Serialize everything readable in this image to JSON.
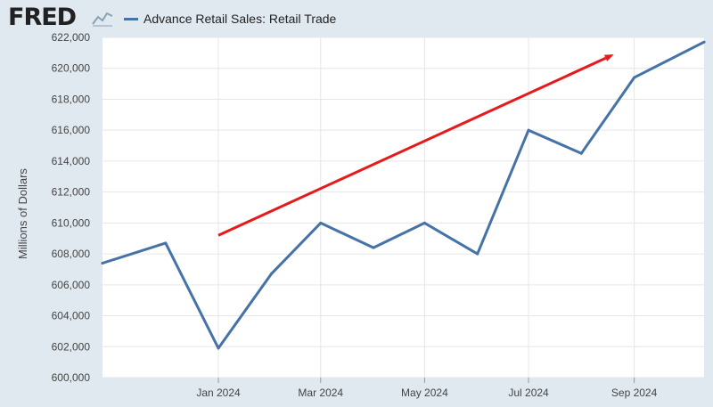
{
  "header": {
    "logo_text": "FRED",
    "logo_icon": "line-chart-icon"
  },
  "chart_data": {
    "type": "line",
    "title": "",
    "xlabel": "",
    "ylabel": "Millions of Dollars",
    "ylim": [
      600000,
      622000
    ],
    "xlim": [
      "2023-10-25",
      "2024-10-12"
    ],
    "yticks": [
      600000,
      602000,
      604000,
      606000,
      608000,
      610000,
      612000,
      614000,
      616000,
      618000,
      620000,
      622000
    ],
    "ytick_labels": [
      "600,000",
      "602,000",
      "604,000",
      "606,000",
      "608,000",
      "610,000",
      "612,000",
      "614,000",
      "616,000",
      "618,000",
      "620,000",
      "622,000"
    ],
    "xticks": [
      "2024-01-01",
      "2024-03-01",
      "2024-05-01",
      "2024-07-01",
      "2024-09-01"
    ],
    "xtick_labels": [
      "Jan 2024",
      "Mar 2024",
      "May 2024",
      "Jul 2024",
      "Sep 2024"
    ],
    "grid": true,
    "legend": "top-left",
    "series": [
      {
        "name": "Advance Retail Sales: Retail Trade",
        "color": "#4572a7",
        "x": [
          "2023-10-25",
          "2023-12-01",
          "2024-01-01",
          "2024-02-01",
          "2024-03-01",
          "2024-04-01",
          "2024-05-01",
          "2024-06-01",
          "2024-07-01",
          "2024-08-01",
          "2024-09-01",
          "2024-10-12"
        ],
        "y": [
          607400,
          608700,
          601900,
          606700,
          610000,
          608400,
          610000,
          608000,
          616000,
          614500,
          619400,
          621700
        ]
      }
    ],
    "annotations": [
      {
        "type": "arrow",
        "color": "#e8191b",
        "from": {
          "x": "2024-01-01",
          "y": 609200
        },
        "to": {
          "x": "2024-08-20",
          "y": 620900
        }
      }
    ]
  }
}
